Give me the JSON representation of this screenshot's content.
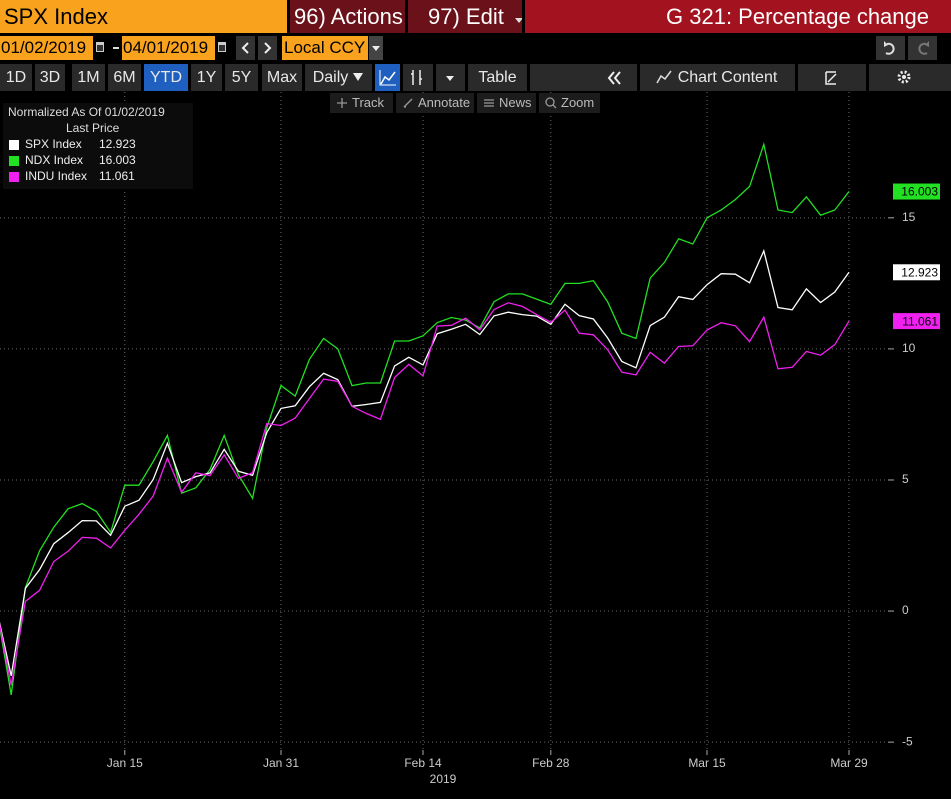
{
  "header": {
    "security": "SPX Index",
    "actions": "96) Actions",
    "edit": "97) Edit",
    "title": "G 321: Percentage change"
  },
  "controls": {
    "start_date": "01/02/2019",
    "end_date": "04/01/2019",
    "currency": "Local CCY",
    "periods": [
      "1D",
      "3D",
      "1M",
      "6M",
      "YTD",
      "1Y",
      "5Y",
      "Max"
    ],
    "selected_period": 4,
    "frequency": "Daily",
    "table": "Table",
    "chart_content": "Chart Content"
  },
  "tools": [
    "Track",
    "Annotate",
    "News",
    "Zoom"
  ],
  "chart_data": {
    "type": "line",
    "legend_title": "Normalized As Of 01/02/2019",
    "legend_subtitle": "Last Price",
    "x": [
      "2019-01-02",
      "2019-01-03",
      "2019-01-04",
      "2019-01-07",
      "2019-01-08",
      "2019-01-09",
      "2019-01-10",
      "2019-01-11",
      "2019-01-14",
      "2019-01-15",
      "2019-01-16",
      "2019-01-17",
      "2019-01-18",
      "2019-01-22",
      "2019-01-23",
      "2019-01-24",
      "2019-01-25",
      "2019-01-28",
      "2019-01-29",
      "2019-01-30",
      "2019-01-31",
      "2019-02-01",
      "2019-02-04",
      "2019-02-05",
      "2019-02-06",
      "2019-02-07",
      "2019-02-08",
      "2019-02-11",
      "2019-02-12",
      "2019-02-13",
      "2019-02-14",
      "2019-02-15",
      "2019-02-19",
      "2019-02-20",
      "2019-02-21",
      "2019-02-22",
      "2019-02-25",
      "2019-02-26",
      "2019-02-27",
      "2019-02-28",
      "2019-03-01",
      "2019-03-04",
      "2019-03-05",
      "2019-03-06",
      "2019-03-07",
      "2019-03-08",
      "2019-03-11",
      "2019-03-12",
      "2019-03-13",
      "2019-03-14",
      "2019-03-15",
      "2019-03-18",
      "2019-03-19",
      "2019-03-20",
      "2019-03-21",
      "2019-03-22",
      "2019-03-25",
      "2019-03-26",
      "2019-03-27",
      "2019-03-28",
      "2019-03-29"
    ],
    "series": [
      {
        "name": "SPX Index",
        "color": "#ffffff",
        "values": [
          0,
          -2.47,
          0.87,
          1.58,
          2.57,
          2.99,
          3.45,
          3.44,
          2.89,
          4.0,
          4.23,
          5.02,
          6.4,
          4.9,
          5.13,
          5.27,
          6.17,
          5.33,
          5.18,
          6.81,
          7.73,
          7.83,
          8.56,
          9.07,
          8.83,
          7.81,
          7.88,
          7.96,
          9.35,
          9.68,
          9.39,
          10.58,
          10.75,
          10.94,
          10.55,
          11.26,
          11.4,
          11.31,
          11.25,
          10.94,
          11.7,
          11.27,
          11.14,
          10.42,
          9.52,
          9.28,
          10.89,
          11.21,
          11.99,
          11.89,
          12.45,
          12.87,
          12.85,
          12.52,
          13.74,
          11.58,
          11.49,
          12.29,
          11.77,
          12.17,
          12.923
        ]
      },
      {
        "name": "NDX Index",
        "color": "#22e022",
        "values": [
          0,
          -3.2,
          0.9,
          2.3,
          3.2,
          3.9,
          4.1,
          3.8,
          3.0,
          4.8,
          4.8,
          5.7,
          6.7,
          4.5,
          4.7,
          5.4,
          6.7,
          5.2,
          4.3,
          7.0,
          8.6,
          8.2,
          9.6,
          10.4,
          10.0,
          8.6,
          8.7,
          8.7,
          10.3,
          10.3,
          10.5,
          11.0,
          11.2,
          11.1,
          10.8,
          11.8,
          12.1,
          12.1,
          11.9,
          11.7,
          12.5,
          12.5,
          12.6,
          11.8,
          10.6,
          10.4,
          12.7,
          13.3,
          14.2,
          14.0,
          15.0,
          15.3,
          15.7,
          16.2,
          17.8,
          15.3,
          15.2,
          15.8,
          15.1,
          15.3,
          16.003
        ]
      },
      {
        "name": "INDU Index",
        "color": "#f020f0",
        "values": [
          0,
          -2.83,
          0.37,
          0.79,
          1.89,
          2.28,
          2.81,
          2.78,
          2.41,
          3.08,
          3.69,
          4.39,
          5.83,
          4.53,
          5.27,
          5.17,
          5.96,
          5.06,
          5.28,
          7.15,
          7.08,
          7.36,
          8.11,
          8.85,
          8.76,
          7.81,
          7.54,
          7.31,
          8.91,
          9.41,
          8.97,
          10.87,
          10.9,
          11.17,
          10.73,
          11.5,
          11.76,
          11.62,
          11.31,
          11.01,
          11.48,
          10.6,
          10.54,
          9.97,
          9.11,
          9.01,
          9.87,
          9.46,
          10.09,
          10.12,
          10.72,
          11.0,
          10.88,
          10.28,
          11.21,
          9.24,
          9.3,
          9.9,
          9.76,
          10.16,
          11.061
        ]
      }
    ],
    "ylim": [
      -5.3,
      19.8
    ],
    "yticks": [
      -5,
      0,
      5,
      10,
      15
    ],
    "xticks": [
      {
        "value": "2019-01-15",
        "label": "Jan 15"
      },
      {
        "value": "2019-01-31",
        "label": "Jan 31"
      },
      {
        "value": "2019-02-14",
        "label": "Feb 14"
      },
      {
        "value": "2019-02-28",
        "label": "Feb 28"
      },
      {
        "value": "2019-03-15",
        "label": "Mar 15"
      },
      {
        "value": "2019-03-29",
        "label": "Mar 29"
      }
    ],
    "x_axis_label": "2019",
    "grid": true
  }
}
